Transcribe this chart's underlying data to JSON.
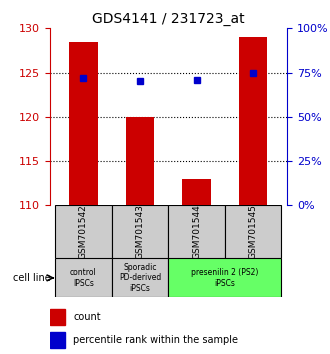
{
  "title": "GDS4141 / 231723_at",
  "samples": [
    "GSM701542",
    "GSM701543",
    "GSM701544",
    "GSM701545"
  ],
  "count_values": [
    128.5,
    120.0,
    113.0,
    129.0
  ],
  "percentile_values": [
    72,
    70,
    71,
    75
  ],
  "ylim_left": [
    110,
    130
  ],
  "ylim_right": [
    0,
    100
  ],
  "yticks_left": [
    110,
    115,
    120,
    125,
    130
  ],
  "yticks_right": [
    0,
    25,
    50,
    75,
    100
  ],
  "ytick_labels_right": [
    "0%",
    "25%",
    "50%",
    "75%",
    "100%"
  ],
  "bar_color": "#cc0000",
  "dot_color": "#0000cc",
  "bar_width": 0.5,
  "cell_line_labels": [
    "control\nIPSCs",
    "Sporadic\nPD-derived\niPSCs",
    "presenilin 2 (PS2)\niPSCs"
  ],
  "cell_line_spans": [
    [
      0,
      1
    ],
    [
      1,
      2
    ],
    [
      2,
      4
    ]
  ],
  "cell_line_colors": [
    "#cccccc",
    "#cccccc",
    "#66ff66"
  ],
  "group_box_color": "#cccccc",
  "legend_count_label": "count",
  "legend_percentile_label": "percentile rank within the sample",
  "cell_line_text": "cell line",
  "grid_color": "#000000",
  "left_tick_color": "#cc0000",
  "right_tick_color": "#0000cc"
}
